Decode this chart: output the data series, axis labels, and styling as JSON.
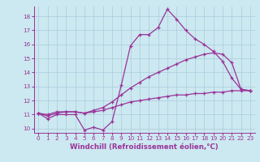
{
  "line1_x": [
    0,
    1,
    2,
    3,
    4,
    5,
    6,
    7,
    8,
    9,
    10,
    11,
    12,
    13,
    14,
    15,
    16,
    17,
    18,
    19,
    20,
    21,
    22,
    23
  ],
  "line1_y": [
    11.1,
    10.7,
    11.0,
    11.0,
    11.0,
    9.9,
    10.1,
    9.9,
    10.5,
    13.1,
    15.9,
    16.7,
    16.7,
    17.2,
    18.5,
    17.8,
    17.0,
    16.4,
    16.0,
    15.5,
    14.8,
    13.6,
    12.8,
    12.7
  ],
  "line2_x": [
    0,
    1,
    2,
    3,
    4,
    5,
    6,
    7,
    8,
    9,
    10,
    11,
    12,
    13,
    14,
    15,
    16,
    17,
    18,
    19,
    20,
    21,
    22,
    23
  ],
  "line2_y": [
    11.1,
    10.9,
    11.1,
    11.2,
    11.2,
    11.1,
    11.2,
    11.3,
    11.5,
    11.7,
    11.9,
    12.0,
    12.1,
    12.2,
    12.3,
    12.4,
    12.4,
    12.5,
    12.5,
    12.6,
    12.6,
    12.7,
    12.7,
    12.7
  ],
  "line3_x": [
    0,
    1,
    2,
    3,
    4,
    5,
    6,
    7,
    8,
    9,
    10,
    11,
    12,
    13,
    14,
    15,
    16,
    17,
    18,
    19,
    20,
    21,
    22,
    23
  ],
  "line3_y": [
    11.1,
    11.0,
    11.2,
    11.2,
    11.2,
    11.1,
    11.3,
    11.5,
    11.9,
    12.4,
    12.9,
    13.3,
    13.7,
    14.0,
    14.3,
    14.6,
    14.9,
    15.1,
    15.3,
    15.4,
    15.3,
    14.7,
    12.8,
    12.7
  ],
  "line_color": "#993399",
  "bg_color": "#cce8f0",
  "grid_color": "#aaccdd",
  "xlabel": "Windchill (Refroidissement éolien,°C)",
  "xlim_min": -0.5,
  "xlim_max": 23.5,
  "ylim_min": 9.7,
  "ylim_max": 18.7,
  "xticks": [
    0,
    1,
    2,
    3,
    4,
    5,
    6,
    7,
    8,
    9,
    10,
    11,
    12,
    13,
    14,
    15,
    16,
    17,
    18,
    19,
    20,
    21,
    22,
    23
  ],
  "yticks": [
    10,
    11,
    12,
    13,
    14,
    15,
    16,
    17,
    18
  ],
  "tick_fontsize": 5.2,
  "xlabel_fontsize": 6.2,
  "marker": "+",
  "markersize": 3.5,
  "linewidth": 0.9
}
